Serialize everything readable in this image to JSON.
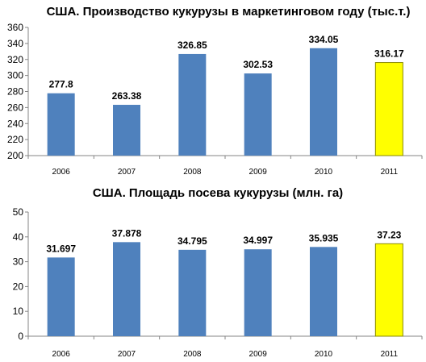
{
  "chart_data": [
    {
      "type": "bar",
      "title": "США. Производство кукурузы в маркетинговом году (тыс.т.)",
      "categories": [
        "2006",
        "2007",
        "2008",
        "2009",
        "2010",
        "2011"
      ],
      "values": [
        277.8,
        263.38,
        326.85,
        302.53,
        334.05,
        316.17
      ],
      "data_labels": [
        "277.8",
        "263.38",
        "326.85",
        "302.53",
        "334.05",
        "316.17"
      ],
      "ylim": [
        200,
        360
      ],
      "yticks": [
        200,
        220,
        240,
        260,
        280,
        300,
        320,
        340,
        360
      ],
      "grid": false,
      "colors": [
        "#4f81bd",
        "#4f81bd",
        "#4f81bd",
        "#4f81bd",
        "#4f81bd",
        "#ffff00"
      ]
    },
    {
      "type": "bar",
      "title": "США.  Площадь посева кукурузы (млн. га)",
      "categories": [
        "2006",
        "2007",
        "2008",
        "2009",
        "2010",
        "2011"
      ],
      "values": [
        31.697,
        37.878,
        34.795,
        34.997,
        35.935,
        37.23
      ],
      "data_labels": [
        "31.697",
        "37.878",
        "34.795",
        "34.997",
        "35.935",
        "37.23"
      ],
      "ylim": [
        0,
        50
      ],
      "yticks": [
        0,
        10,
        20,
        30,
        40,
        50
      ],
      "grid": false,
      "colors": [
        "#4f81bd",
        "#4f81bd",
        "#4f81bd",
        "#4f81bd",
        "#4f81bd",
        "#ffff00"
      ]
    }
  ]
}
